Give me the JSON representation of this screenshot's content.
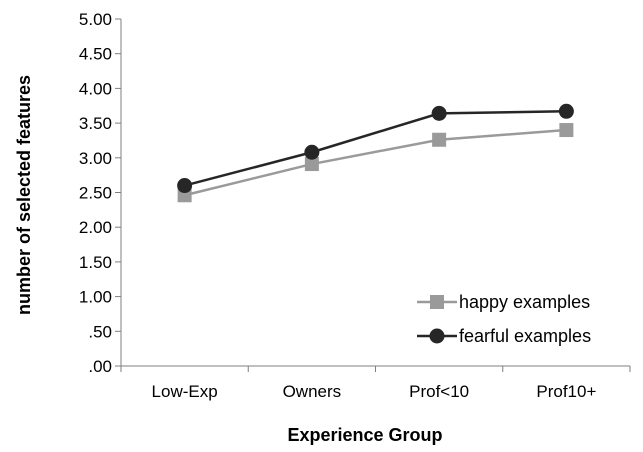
{
  "chart_data": {
    "type": "line",
    "xlabel": "Experience Group",
    "ylabel": "number of selected features",
    "categories": [
      "Low-Exp",
      "Owners",
      "Prof<10",
      "Prof10+"
    ],
    "ylim": [
      0,
      5
    ],
    "yticks": [
      "5.00",
      "4.50",
      "4.00",
      "3.50",
      "3.00",
      "2.50",
      "2.00",
      "1.50",
      "1.00",
      ".50",
      ".00"
    ],
    "grid": false,
    "legend_position": "bottom-right",
    "series": [
      {
        "name": "happy examples",
        "marker": "square",
        "color": "#9a9a9a",
        "values": [
          2.46,
          2.91,
          3.26,
          3.4
        ]
      },
      {
        "name": "fearful examples",
        "marker": "circle",
        "color": "#262626",
        "values": [
          2.6,
          3.08,
          3.64,
          3.67
        ]
      }
    ]
  }
}
